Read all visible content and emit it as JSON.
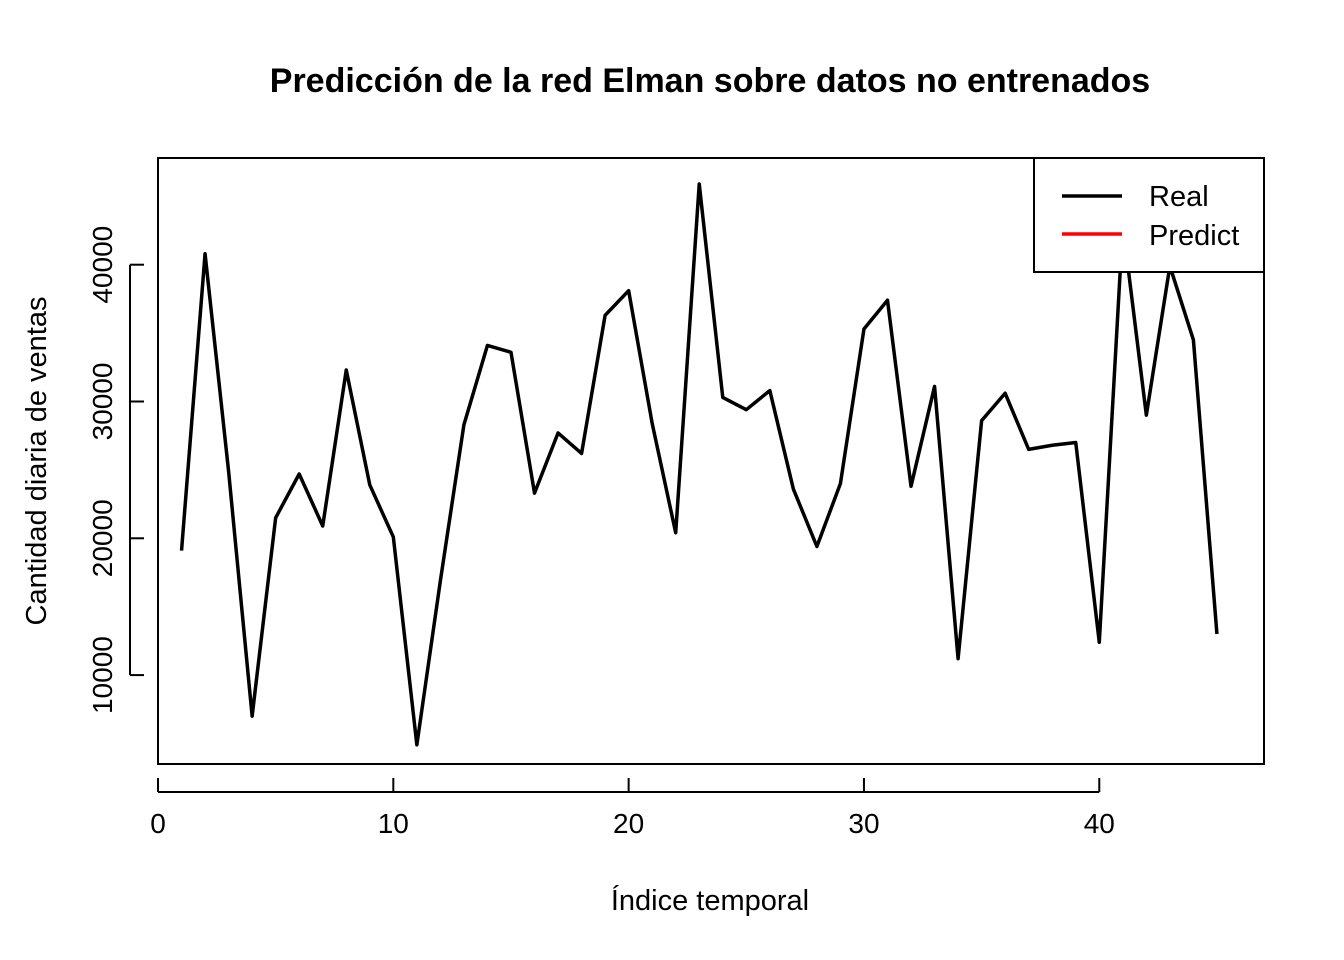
{
  "chart_data": {
    "type": "line",
    "title": "Predicción de la red Elman sobre datos no entrenados",
    "xlabel": "Índice temporal",
    "ylabel": "Cantidad diaria de ventas",
    "xlim": [
      0,
      47
    ],
    "ylim": [
      3500,
      47800
    ],
    "x_ticks": [
      0,
      10,
      20,
      30,
      40
    ],
    "y_ticks": [
      10000,
      20000,
      30000,
      40000
    ],
    "grid": false,
    "legend_position": "top-right",
    "legend": [
      {
        "label": "Real",
        "color": "#000000"
      },
      {
        "label": "Predict",
        "color": "#ff0000"
      }
    ],
    "x": [
      1,
      2,
      3,
      4,
      5,
      6,
      7,
      8,
      9,
      10,
      11,
      12,
      13,
      14,
      15,
      16,
      17,
      18,
      19,
      20,
      21,
      22,
      23,
      24,
      25,
      26,
      27,
      28,
      29,
      30,
      31,
      32,
      33,
      34,
      35,
      36,
      37,
      38,
      39,
      40,
      41,
      42,
      43,
      44,
      45
    ],
    "series": [
      {
        "name": "Real",
        "color": "#000000",
        "values": [
          19100,
          40800,
          24900,
          7000,
          21500,
          24700,
          20900,
          32300,
          23900,
          20100,
          4900,
          16900,
          28300,
          34100,
          33600,
          23300,
          27700,
          26200,
          36300,
          38100,
          28400,
          20400,
          45900,
          30300,
          29400,
          30800,
          23600,
          19400,
          24000,
          35300,
          37400,
          23800,
          31100,
          11200,
          28600,
          30600,
          26500,
          26800,
          27000,
          12400,
          42900,
          29000,
          39900,
          34500,
          13000
        ]
      }
    ]
  }
}
